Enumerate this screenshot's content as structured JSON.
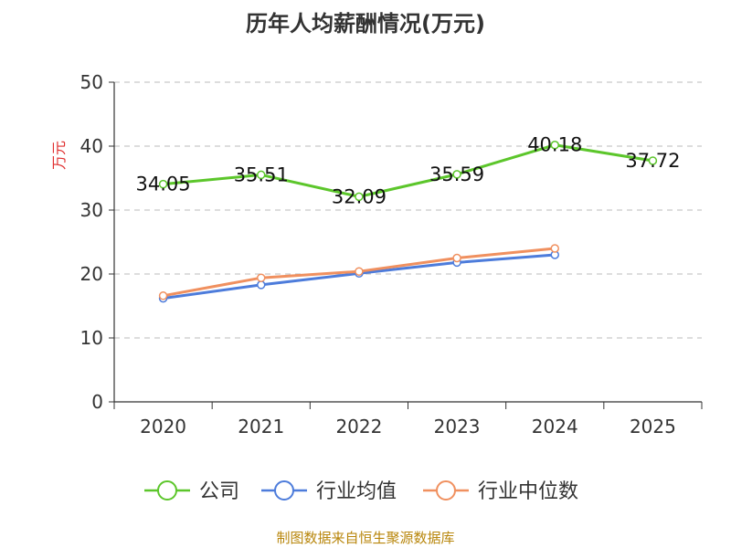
{
  "chart_data": {
    "type": "line",
    "title": "历年人均薪酬情况(万元)",
    "ylabel": "万元",
    "xlabel": "",
    "categories": [
      "2020",
      "2021",
      "2022",
      "2023",
      "2024",
      "2025"
    ],
    "ylim": [
      0,
      50
    ],
    "yticks": [
      "0",
      "10",
      "20",
      "30",
      "40",
      "50"
    ],
    "grid": true,
    "legend_position": "bottom",
    "series": [
      {
        "name": "公司",
        "color": "#5cc62b",
        "values": [
          34.05,
          35.51,
          32.09,
          35.59,
          40.18,
          37.72
        ],
        "labels": [
          "34.05",
          "35.51",
          "32.09",
          "35.59",
          "40.18",
          "37.72"
        ]
      },
      {
        "name": "行业均值",
        "color": "#4d7cdb",
        "values": [
          16.2,
          18.3,
          20.1,
          21.8,
          23.0,
          null
        ]
      },
      {
        "name": "行业中位数",
        "color": "#f0905f",
        "values": [
          16.6,
          19.4,
          20.4,
          22.5,
          24.0,
          null
        ]
      }
    ]
  },
  "source": "制图数据来自恒生聚源数据库"
}
